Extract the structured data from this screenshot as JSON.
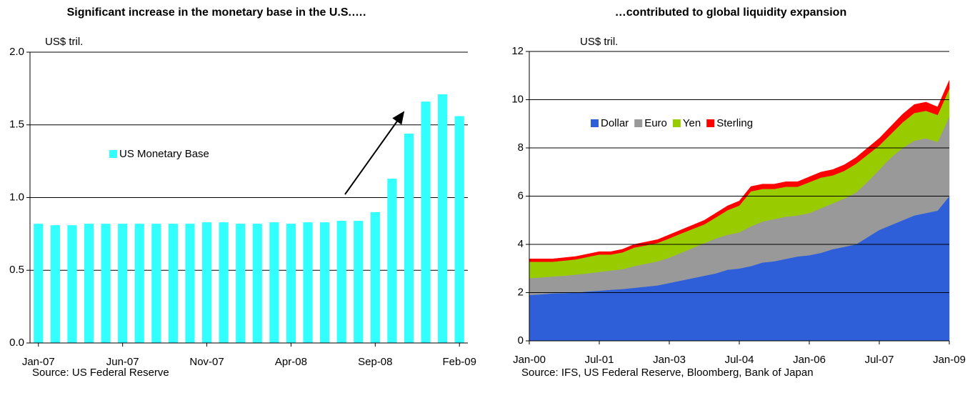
{
  "chart_data": [
    {
      "type": "bar",
      "title": "Significant increase in the monetary base in the U.S.….",
      "y_axis_label": "US$ tril.",
      "source": "Source: US Federal Reserve",
      "categories": [
        "Jan-07",
        null,
        null,
        null,
        null,
        "Jun-07",
        null,
        null,
        null,
        null,
        "Nov-07",
        null,
        null,
        null,
        null,
        "Apr-08",
        null,
        null,
        null,
        null,
        "Sep-08",
        null,
        null,
        null,
        null,
        "Feb-09"
      ],
      "series": [
        {
          "name": "US Monetary Base",
          "color": "#33ffff",
          "values": [
            0.82,
            0.81,
            0.81,
            0.82,
            0.82,
            0.82,
            0.82,
            0.82,
            0.82,
            0.82,
            0.83,
            0.83,
            0.82,
            0.82,
            0.83,
            0.82,
            0.83,
            0.83,
            0.84,
            0.84,
            0.9,
            1.13,
            1.44,
            1.66,
            1.71,
            1.56
          ]
        }
      ],
      "ylim": [
        0,
        2
      ],
      "yticks": [
        {
          "value": 0,
          "label": "0.0"
        },
        {
          "value": 0.5,
          "label": "0.5"
        },
        {
          "value": 1,
          "label": "1.0"
        },
        {
          "value": 1.5,
          "label": "1.5"
        },
        {
          "value": 2,
          "label": "2.0"
        }
      ],
      "grid": true
    },
    {
      "type": "area",
      "stacked": true,
      "title": "…contributed to global liquidity expansion",
      "y_axis_label": "US$ tril.",
      "source": "Source: IFS, US Federal Reserve, Bloomberg, Bank of Japan",
      "categories": [
        "Jan-00",
        null,
        null,
        null,
        null,
        null,
        "Jul-01",
        null,
        null,
        null,
        null,
        null,
        "Jan-03",
        null,
        null,
        null,
        null,
        null,
        "Jul-04",
        null,
        null,
        null,
        null,
        null,
        "Jan-06",
        null,
        null,
        null,
        null,
        null,
        "Jul-07",
        null,
        null,
        null,
        null,
        null,
        "Jan-09"
      ],
      "series": [
        {
          "name": "Dollar",
          "color": "#2f5fd8",
          "values": [
            1.9,
            1.93,
            1.97,
            1.98,
            2.0,
            2.05,
            2.08,
            2.12,
            2.15,
            2.2,
            2.25,
            2.3,
            2.4,
            2.5,
            2.6,
            2.7,
            2.8,
            2.95,
            3.0,
            3.1,
            3.25,
            3.3,
            3.4,
            3.5,
            3.55,
            3.65,
            3.8,
            3.9,
            4.0,
            4.3,
            4.6,
            4.8,
            5.0,
            5.2,
            5.3,
            5.4,
            6.0
          ]
        },
        {
          "name": "Euro",
          "color": "#999999",
          "values": [
            0.7,
            0.7,
            0.7,
            0.72,
            0.75,
            0.75,
            0.78,
            0.8,
            0.82,
            0.9,
            0.95,
            1.0,
            1.05,
            1.15,
            1.25,
            1.35,
            1.45,
            1.45,
            1.5,
            1.65,
            1.7,
            1.75,
            1.75,
            1.7,
            1.75,
            1.85,
            1.9,
            2.0,
            2.15,
            2.3,
            2.5,
            2.8,
            3.0,
            3.1,
            3.1,
            2.85,
            3.3
          ]
        },
        {
          "name": "Yen",
          "color": "#99cc00",
          "values": [
            0.68,
            0.65,
            0.61,
            0.63,
            0.63,
            0.68,
            0.72,
            0.66,
            0.7,
            0.77,
            0.76,
            0.76,
            0.8,
            0.8,
            0.79,
            0.78,
            0.87,
            1.02,
            1.11,
            1.45,
            1.35,
            1.25,
            1.24,
            1.19,
            1.28,
            1.27,
            1.16,
            1.15,
            1.19,
            1.12,
            1.0,
            0.98,
            1.06,
            1.15,
            1.14,
            1.12,
            1.15
          ]
        },
        {
          "name": "Sterling",
          "color": "#ff0000",
          "values": [
            0.12,
            0.12,
            0.12,
            0.12,
            0.12,
            0.12,
            0.12,
            0.12,
            0.13,
            0.13,
            0.14,
            0.14,
            0.15,
            0.15,
            0.16,
            0.17,
            0.18,
            0.18,
            0.19,
            0.2,
            0.2,
            0.2,
            0.21,
            0.21,
            0.22,
            0.23,
            0.24,
            0.25,
            0.26,
            0.28,
            0.3,
            0.32,
            0.34,
            0.35,
            0.36,
            0.33,
            0.35
          ]
        }
      ],
      "ylim": [
        0,
        12
      ],
      "yticks": [
        0,
        2,
        4,
        6,
        8,
        10,
        12
      ],
      "grid": true
    }
  ]
}
